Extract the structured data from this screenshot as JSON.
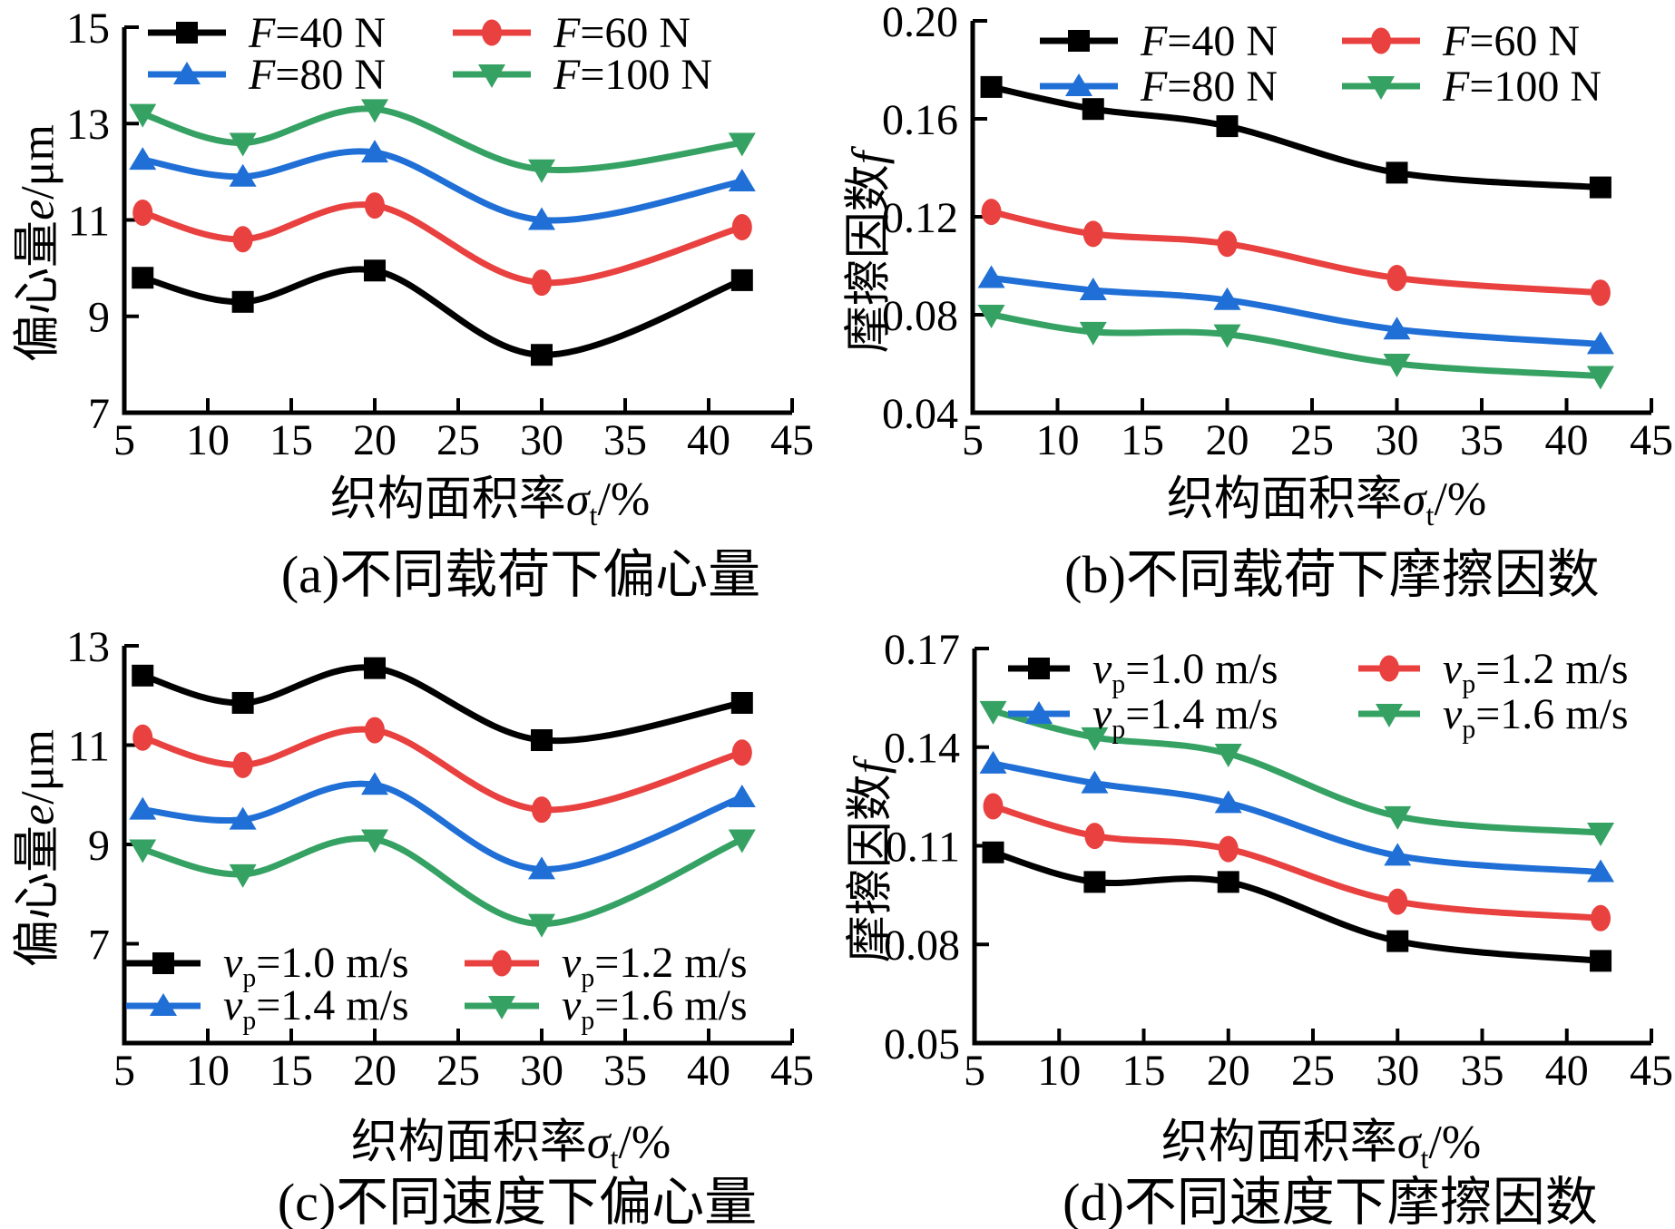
{
  "figure": {
    "background": "#ffffff",
    "colors": {
      "black": "#000000",
      "red": "#e8413f",
      "blue": "#1f6fd6",
      "green": "#35a263"
    }
  },
  "chart_data": [
    {
      "id": "a",
      "type": "line",
      "caption": "(a)不同载荷下偏心量",
      "xlabel": "织构面积率σt/%",
      "ylabel": "偏心量e/μm",
      "xlabel_parts": [
        {
          "t": "织构面积率"
        },
        {
          "t": "σ",
          "i": true
        },
        {
          "t": "t",
          "sub": true
        },
        {
          "t": "/%"
        }
      ],
      "ylabel_parts": [
        {
          "t": "偏心量"
        },
        {
          "t": "e",
          "i": true
        },
        {
          "t": "/μm"
        }
      ],
      "xlim": [
        5,
        45
      ],
      "ylim": [
        7,
        15
      ],
      "xticks": [
        {
          "v": 5,
          "label": "5"
        },
        {
          "v": 10,
          "label": "10"
        },
        {
          "v": 15,
          "label": "15"
        },
        {
          "v": 20,
          "label": "20"
        },
        {
          "v": 25,
          "label": "25"
        },
        {
          "v": 30,
          "label": "30"
        },
        {
          "v": 35,
          "label": "35"
        },
        {
          "v": 40,
          "label": "40"
        },
        {
          "v": 45,
          "label": "45"
        }
      ],
      "yticks": [
        {
          "v": 7,
          "label": "7"
        },
        {
          "v": 9,
          "label": "9"
        },
        {
          "v": 11,
          "label": "11"
        },
        {
          "v": 13,
          "label": "13"
        },
        {
          "v": 15,
          "label": "15"
        }
      ],
      "x": [
        6.1,
        12.1,
        20,
        30,
        42
      ],
      "legend_pos": "top",
      "grid": false,
      "series": [
        {
          "name": "F=40 N",
          "label_parts": [
            {
              "t": "F",
              "i": true
            },
            {
              "t": "=40 N"
            }
          ],
          "color": "#000000",
          "marker": "square",
          "values": [
            9.8,
            9.3,
            9.95,
            8.2,
            9.75
          ]
        },
        {
          "name": "F=60 N",
          "label_parts": [
            {
              "t": "F",
              "i": true
            },
            {
              "t": "=60 N"
            }
          ],
          "color": "#e8413f",
          "marker": "ellipse",
          "values": [
            11.15,
            10.6,
            11.3,
            9.7,
            10.85
          ]
        },
        {
          "name": "F=80 N",
          "label_parts": [
            {
              "t": "F",
              "i": true
            },
            {
              "t": "=80 N"
            }
          ],
          "color": "#1f6fd6",
          "marker": "triangle-up",
          "values": [
            12.25,
            11.9,
            12.4,
            11.0,
            11.8
          ]
        },
        {
          "name": "F=100 N",
          "label_parts": [
            {
              "t": "F",
              "i": true
            },
            {
              "t": "=100 N"
            }
          ],
          "color": "#35a263",
          "marker": "triangle-down",
          "values": [
            13.2,
            12.6,
            13.3,
            12.05,
            12.6
          ]
        }
      ]
    },
    {
      "id": "b",
      "type": "line",
      "caption": "(b)不同载荷下摩擦因数",
      "xlabel": "织构面积率σt/%",
      "ylabel": "摩擦因数f",
      "xlabel_parts": [
        {
          "t": "织构面积率"
        },
        {
          "t": "σ",
          "i": true
        },
        {
          "t": "t",
          "sub": true
        },
        {
          "t": "/%"
        }
      ],
      "ylabel_parts": [
        {
          "t": "摩擦因数"
        },
        {
          "t": "f",
          "i": true
        }
      ],
      "xlim": [
        5,
        45
      ],
      "ylim": [
        0.04,
        0.2
      ],
      "xticks": [
        {
          "v": 5,
          "label": "5"
        },
        {
          "v": 10,
          "label": "10"
        },
        {
          "v": 15,
          "label": "15"
        },
        {
          "v": 20,
          "label": "20"
        },
        {
          "v": 25,
          "label": "25"
        },
        {
          "v": 30,
          "label": "30"
        },
        {
          "v": 35,
          "label": "35"
        },
        {
          "v": 40,
          "label": "40"
        },
        {
          "v": 45,
          "label": "45"
        }
      ],
      "yticks": [
        {
          "v": 0.04,
          "label": "0.04"
        },
        {
          "v": 0.08,
          "label": "0.08"
        },
        {
          "v": 0.12,
          "label": "0.12"
        },
        {
          "v": 0.16,
          "label": "0.16"
        },
        {
          "v": 0.2,
          "label": "0.20"
        }
      ],
      "x": [
        6.1,
        12.1,
        20,
        30,
        42
      ],
      "legend_pos": "top",
      "grid": false,
      "series": [
        {
          "name": "F=40 N",
          "label_parts": [
            {
              "t": "F",
              "i": true
            },
            {
              "t": "=40 N"
            }
          ],
          "color": "#000000",
          "marker": "square",
          "values": [
            0.173,
            0.164,
            0.157,
            0.138,
            0.132
          ]
        },
        {
          "name": "F=60 N",
          "label_parts": [
            {
              "t": "F",
              "i": true
            },
            {
              "t": "=60 N"
            }
          ],
          "color": "#e8413f",
          "marker": "ellipse",
          "values": [
            0.122,
            0.113,
            0.109,
            0.095,
            0.089
          ]
        },
        {
          "name": "F=80 N",
          "label_parts": [
            {
              "t": "F",
              "i": true
            },
            {
              "t": "=80 N"
            }
          ],
          "color": "#1f6fd6",
          "marker": "triangle-up",
          "values": [
            0.095,
            0.09,
            0.086,
            0.074,
            0.068
          ]
        },
        {
          "name": "F=100 N",
          "label_parts": [
            {
              "t": "F",
              "i": true
            },
            {
              "t": "=100 N"
            }
          ],
          "color": "#35a263",
          "marker": "triangle-down",
          "values": [
            0.08,
            0.073,
            0.072,
            0.06,
            0.055
          ]
        }
      ]
    },
    {
      "id": "c",
      "type": "line",
      "caption": "(c)不同速度下偏心量",
      "xlabel": "织构面积率σt/%",
      "ylabel": "偏心量e/μm",
      "xlabel_parts": [
        {
          "t": "织构面积率"
        },
        {
          "t": "σ",
          "i": true
        },
        {
          "t": "t",
          "sub": true
        },
        {
          "t": "/%"
        }
      ],
      "ylabel_parts": [
        {
          "t": "偏心量"
        },
        {
          "t": "e",
          "i": true
        },
        {
          "t": "/μm"
        }
      ],
      "xlim": [
        5,
        45
      ],
      "ylim": [
        5,
        13
      ],
      "xticks": [
        {
          "v": 5,
          "label": "5"
        },
        {
          "v": 10,
          "label": "10"
        },
        {
          "v": 15,
          "label": "15"
        },
        {
          "v": 20,
          "label": "20"
        },
        {
          "v": 25,
          "label": "25"
        },
        {
          "v": 30,
          "label": "30"
        },
        {
          "v": 35,
          "label": "35"
        },
        {
          "v": 40,
          "label": "40"
        },
        {
          "v": 45,
          "label": "45"
        }
      ],
      "yticks": [
        {
          "v": 7,
          "label": "7"
        },
        {
          "v": 9,
          "label": "9"
        },
        {
          "v": 11,
          "label": "11"
        },
        {
          "v": 13,
          "label": "13"
        }
      ],
      "x": [
        6.1,
        12.1,
        20,
        30,
        42
      ],
      "legend_pos": "bottom",
      "grid": false,
      "series": [
        {
          "name": "vp=1.0 m/s",
          "label_parts": [
            {
              "t": "v",
              "i": true
            },
            {
              "t": "p",
              "sub": true
            },
            {
              "t": "=1.0 m/s"
            }
          ],
          "color": "#000000",
          "marker": "square",
          "values": [
            12.4,
            11.85,
            12.55,
            11.1,
            11.85
          ]
        },
        {
          "name": "vp=1.2 m/s",
          "label_parts": [
            {
              "t": "v",
              "i": true
            },
            {
              "t": "p",
              "sub": true
            },
            {
              "t": "=1.2 m/s"
            }
          ],
          "color": "#e8413f",
          "marker": "ellipse",
          "values": [
            11.15,
            10.6,
            11.3,
            9.7,
            10.85
          ]
        },
        {
          "name": "vp=1.4 m/s",
          "label_parts": [
            {
              "t": "v",
              "i": true
            },
            {
              "t": "p",
              "sub": true
            },
            {
              "t": "=1.4 m/s"
            }
          ],
          "color": "#1f6fd6",
          "marker": "triangle-up",
          "values": [
            9.7,
            9.5,
            10.2,
            8.5,
            9.95
          ]
        },
        {
          "name": "vp=1.6 m/s",
          "label_parts": [
            {
              "t": "v",
              "i": true
            },
            {
              "t": "p",
              "sub": true
            },
            {
              "t": "=1.6 m/s"
            }
          ],
          "color": "#35a263",
          "marker": "triangle-down",
          "values": [
            8.9,
            8.4,
            9.1,
            7.4,
            9.1
          ]
        }
      ]
    },
    {
      "id": "d",
      "type": "line",
      "caption": "(d)不同速度下摩擦因数",
      "xlabel": "织构面积率σt/%",
      "ylabel": "摩擦因数f",
      "xlabel_parts": [
        {
          "t": "织构面积率"
        },
        {
          "t": "σ",
          "i": true
        },
        {
          "t": "t",
          "sub": true
        },
        {
          "t": "/%"
        }
      ],
      "ylabel_parts": [
        {
          "t": "摩擦因数"
        },
        {
          "t": "f",
          "i": true
        }
      ],
      "xlim": [
        5,
        45
      ],
      "ylim": [
        0.05,
        0.17
      ],
      "xticks": [
        {
          "v": 5,
          "label": "5"
        },
        {
          "v": 10,
          "label": "10"
        },
        {
          "v": 15,
          "label": "15"
        },
        {
          "v": 20,
          "label": "20"
        },
        {
          "v": 25,
          "label": "25"
        },
        {
          "v": 30,
          "label": "30"
        },
        {
          "v": 35,
          "label": "35"
        },
        {
          "v": 40,
          "label": "40"
        },
        {
          "v": 45,
          "label": "45"
        }
      ],
      "yticks": [
        {
          "v": 0.05,
          "label": "0.05"
        },
        {
          "v": 0.08,
          "label": "0.08"
        },
        {
          "v": 0.11,
          "label": "0.11"
        },
        {
          "v": 0.14,
          "label": "0.14"
        },
        {
          "v": 0.17,
          "label": "0.17"
        }
      ],
      "x": [
        6.1,
        12.1,
        20,
        30,
        42
      ],
      "legend_pos": "top",
      "grid": false,
      "series": [
        {
          "name": "vp=1.0 m/s",
          "label_parts": [
            {
              "t": "v",
              "i": true
            },
            {
              "t": "p",
              "sub": true
            },
            {
              "t": "=1.0 m/s"
            }
          ],
          "color": "#000000",
          "marker": "square",
          "values": [
            0.108,
            0.099,
            0.099,
            0.081,
            0.075
          ]
        },
        {
          "name": "vp=1.2 m/s",
          "label_parts": [
            {
              "t": "v",
              "i": true
            },
            {
              "t": "p",
              "sub": true
            },
            {
              "t": "=1.2 m/s"
            }
          ],
          "color": "#e8413f",
          "marker": "ellipse",
          "values": [
            0.122,
            0.113,
            0.109,
            0.093,
            0.088
          ]
        },
        {
          "name": "vp=1.4 m/s",
          "label_parts": [
            {
              "t": "v",
              "i": true
            },
            {
              "t": "p",
              "sub": true
            },
            {
              "t": "=1.4 m/s"
            }
          ],
          "color": "#1f6fd6",
          "marker": "triangle-up",
          "values": [
            0.135,
            0.129,
            0.123,
            0.107,
            0.102
          ]
        },
        {
          "name": "vp=1.6 m/s",
          "label_parts": [
            {
              "t": "v",
              "i": true
            },
            {
              "t": "p",
              "sub": true
            },
            {
              "t": "=1.6 m/s"
            }
          ],
          "color": "#35a263",
          "marker": "triangle-down",
          "values": [
            0.151,
            0.143,
            0.138,
            0.119,
            0.114
          ]
        }
      ]
    }
  ]
}
